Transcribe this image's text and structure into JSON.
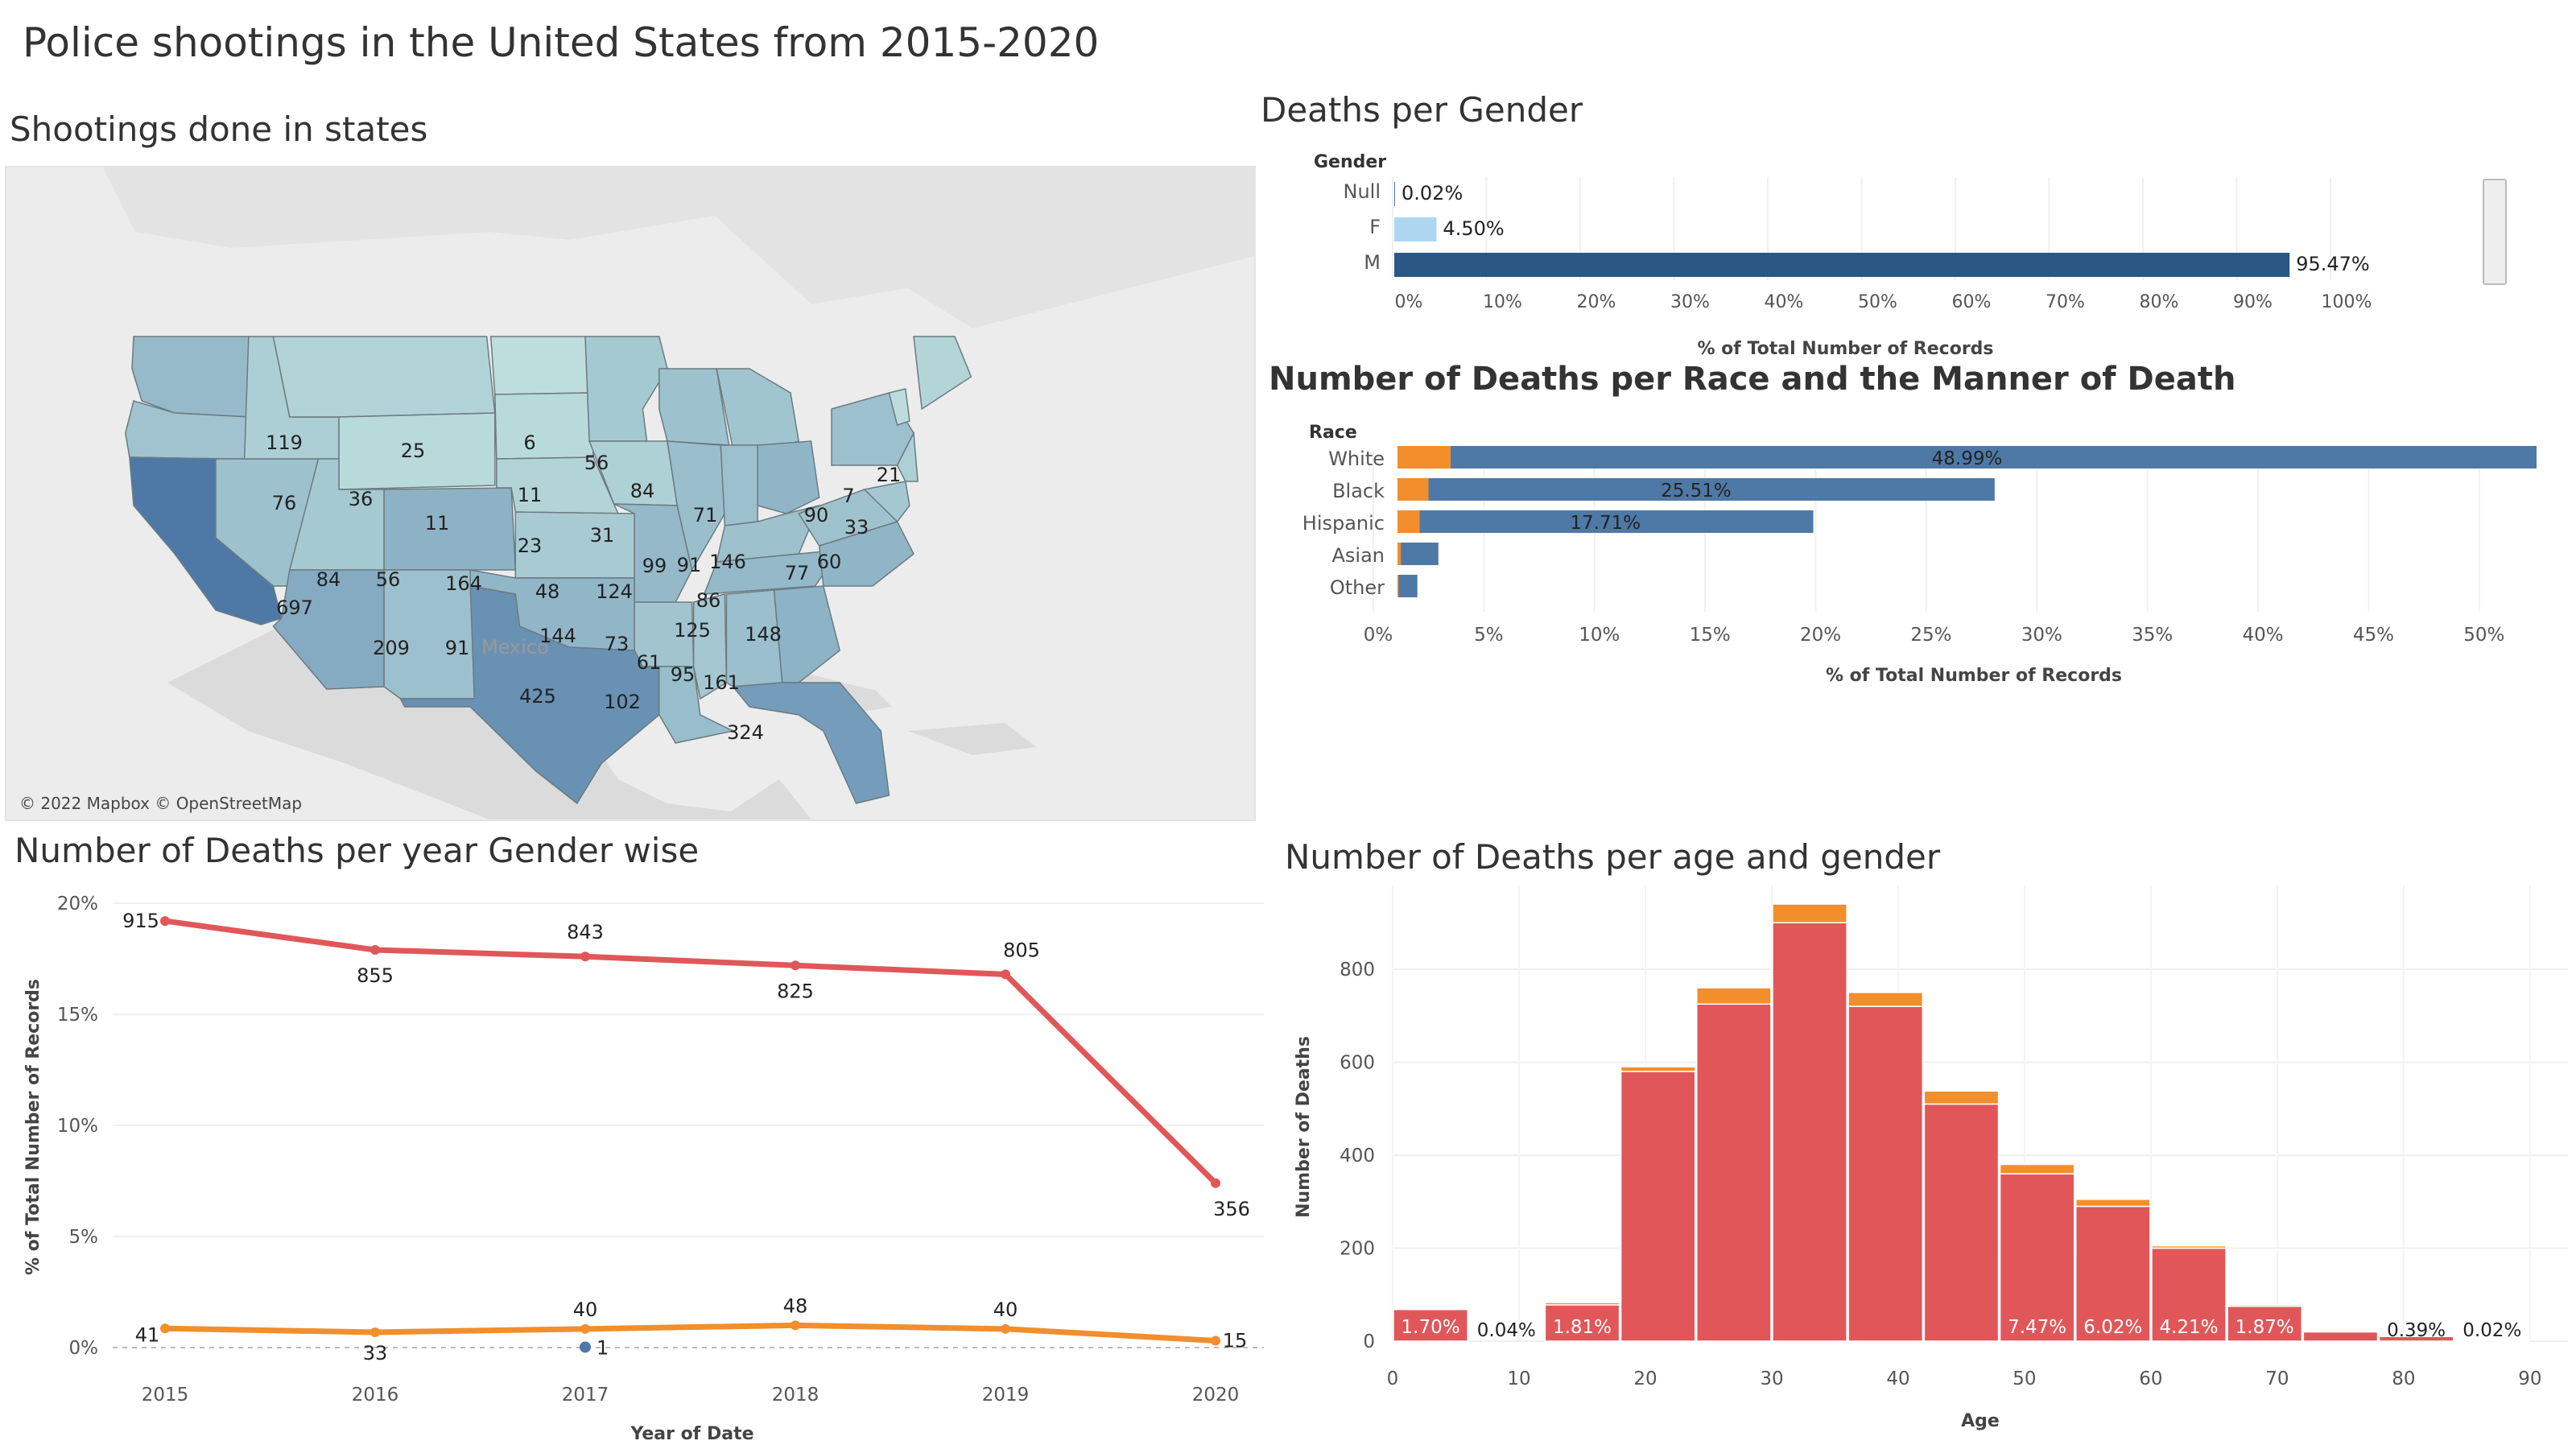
{
  "title": "Police shootings in the United States from 2015-2020",
  "colors": {
    "male": "#e15759",
    "female": "#f28e2b",
    "null_gender": "#4e79a7",
    "blue": "#4e79a7",
    "navy": "#2a5783",
    "light_blue": "#aed6f1",
    "map_land": "#d9d9d9",
    "map_bg": "#ececec"
  },
  "map": {
    "title": "Shootings done in states",
    "credit": "© 2022 Mapbox © OpenStreetMap",
    "place_label": "Mexico",
    "states": [
      {
        "state": "WA",
        "value": 119
      },
      {
        "state": "OR",
        "value": 76
      },
      {
        "state": "ID",
        "value": 36
      },
      {
        "state": "MT",
        "value": 25
      },
      {
        "state": "WY",
        "value": 11
      },
      {
        "state": "ND",
        "value": 6
      },
      {
        "state": "SD",
        "value": 11
      },
      {
        "state": "NE",
        "value": 23
      },
      {
        "state": "MN",
        "value": 56
      },
      {
        "state": "IA",
        "value": 31
      },
      {
        "state": "WI",
        "value": 84
      },
      {
        "state": "MI",
        "value": 71
      },
      {
        "state": "CA",
        "value": 697
      },
      {
        "state": "NV",
        "value": 84
      },
      {
        "state": "UT",
        "value": 56
      },
      {
        "state": "CO",
        "value": 164
      },
      {
        "state": "KS",
        "value": 48
      },
      {
        "state": "MO",
        "value": 124
      },
      {
        "state": "IL",
        "value": 99
      },
      {
        "state": "IN",
        "value": 91
      },
      {
        "state": "OH",
        "value": 146
      },
      {
        "state": "KY",
        "value": 86
      },
      {
        "state": "AZ",
        "value": 209
      },
      {
        "state": "NM",
        "value": 91
      },
      {
        "state": "OK",
        "value": 144
      },
      {
        "state": "TX",
        "value": 425
      },
      {
        "state": "AR",
        "value": 73
      },
      {
        "state": "LA",
        "value": 102
      },
      {
        "state": "MS",
        "value": 61
      },
      {
        "state": "AL",
        "value": 95
      },
      {
        "state": "TN",
        "value": 125
      },
      {
        "state": "GA",
        "value": 161
      },
      {
        "state": "FL",
        "value": 324
      },
      {
        "state": "NC",
        "value": 148
      },
      {
        "state": "VA",
        "value": 77
      },
      {
        "state": "MD",
        "value": 60
      },
      {
        "state": "NY",
        "value": 90
      },
      {
        "state": "VT",
        "value": 7
      },
      {
        "state": "NJ",
        "value": 33
      },
      {
        "state": "ME",
        "value": 21
      }
    ]
  },
  "chart_data": [
    {
      "id": "gender",
      "type": "bar",
      "orientation": "horizontal",
      "title": "Deaths per Gender",
      "legend_title": "Gender",
      "xlabel": "% of Total Number of Records",
      "categories": [
        "Null",
        "F",
        "M"
      ],
      "values": [
        0.02,
        4.5,
        95.47
      ],
      "value_labels": [
        "0.02%",
        "4.50%",
        "95.47%"
      ],
      "xlim": [
        0,
        100
      ],
      "ticks": [
        "0%",
        "10%",
        "20%",
        "30%",
        "40%",
        "50%",
        "60%",
        "70%",
        "80%",
        "90%",
        "100%"
      ]
    },
    {
      "id": "race",
      "type": "bar",
      "orientation": "horizontal",
      "stacked": true,
      "title": "Number of Deaths per Race and the Manner of Death",
      "legend_title": "Race",
      "xlabel": "% of Total Number of Records",
      "categories": [
        "White",
        "Black",
        "Hispanic",
        "Asian",
        "Other"
      ],
      "series": [
        {
          "values": [
            2.4,
            1.4,
            1.0,
            0.15,
            0.05
          ],
          "color": "#f28e2b"
        },
        {
          "values": [
            49.1,
            25.6,
            17.8,
            1.7,
            0.85
          ],
          "color": "#4e79a7"
        }
      ],
      "value_labels": [
        "48.99%",
        "25.51%",
        "17.71%",
        "",
        ""
      ],
      "xlim": [
        0,
        51.5
      ],
      "ticks": [
        0,
        5,
        10,
        15,
        20,
        25,
        30,
        35,
        40,
        45,
        50
      ],
      "tick_labels": [
        "0%",
        "5%",
        "10%",
        "15%",
        "20%",
        "25%",
        "30%",
        "35%",
        "40%",
        "45%",
        "50%"
      ]
    },
    {
      "id": "year",
      "type": "line",
      "title": "Number of Deaths per year Gender wise",
      "xlabel": "Year of Date",
      "ylabel": "% of Total Number of Records",
      "x": [
        "2015",
        "2016",
        "2017",
        "2018",
        "2019",
        "2020"
      ],
      "ylim": [
        0,
        20
      ],
      "yticks": [
        0,
        5,
        10,
        15,
        20
      ],
      "ytick_labels": [
        "0%",
        "5%",
        "10%",
        "15%",
        "20%"
      ],
      "series": [
        {
          "color": "#e15759",
          "values": [
            19.2,
            17.9,
            17.6,
            17.2,
            16.8,
            7.4
          ],
          "labels": [
            "915",
            "855",
            "843",
            "825",
            "805",
            "356"
          ]
        },
        {
          "color": "#f28e2b",
          "values": [
            0.86,
            0.69,
            0.84,
            1.0,
            0.84,
            0.31
          ],
          "labels": [
            "41",
            "33",
            "40",
            "48",
            "40",
            "15"
          ]
        },
        {
          "color": "#4e79a7",
          "points": [
            {
              "x": "2017",
              "y": 0.02,
              "label": "1"
            }
          ]
        }
      ]
    },
    {
      "id": "age",
      "type": "bar",
      "stacked": true,
      "title": "Number of Deaths per age and gender",
      "xlabel": "Age",
      "ylabel": "Number of Deaths",
      "bin_width": 6,
      "bin_starts": [
        0,
        6,
        12,
        18,
        24,
        30,
        36,
        42,
        48,
        54,
        60,
        66,
        72,
        78,
        84
      ],
      "series": [
        {
          "color": "#e15759",
          "values": [
            68,
            0,
            78,
            580,
            725,
            900,
            720,
            510,
            360,
            290,
            200,
            75,
            20,
            10,
            2
          ]
        },
        {
          "color": "#f28e2b",
          "values": [
            2,
            0,
            5,
            10,
            35,
            40,
            30,
            28,
            20,
            15,
            5,
            3,
            1,
            1,
            0
          ]
        },
        {
          "color": "#4e79a7",
          "values": [
            0,
            0,
            0,
            2,
            0,
            0,
            0,
            0,
            0,
            0,
            0,
            0,
            0,
            0,
            0
          ]
        }
      ],
      "value_labels": [
        "1.70%",
        "0.04%",
        "1.81%",
        "",
        "",
        "",
        "",
        "",
        "7.47%",
        "6.02%",
        "4.21%",
        "1.87%",
        "",
        "0.39%",
        "0.02%"
      ],
      "xlim": [
        0,
        93
      ],
      "xticks": [
        0,
        10,
        20,
        30,
        40,
        50,
        60,
        70,
        80,
        90
      ],
      "ylim": [
        0,
        980
      ],
      "yticks": [
        0,
        200,
        400,
        600,
        800
      ]
    }
  ]
}
